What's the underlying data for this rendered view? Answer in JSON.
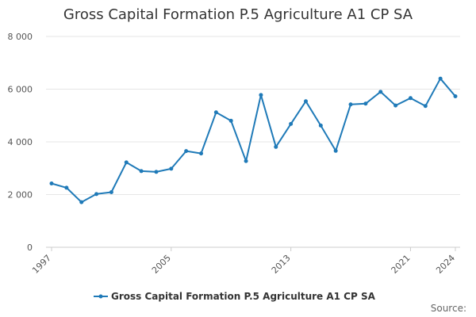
{
  "chart_data": {
    "type": "line",
    "title": "Gross Capital Formation P.5 Agriculture A1 CP SA",
    "xlabel": "",
    "ylabel": "",
    "x": [
      1997,
      1998,
      1999,
      2000,
      2001,
      2002,
      2003,
      2004,
      2005,
      2006,
      2007,
      2008,
      2009,
      2010,
      2011,
      2012,
      2013,
      2014,
      2015,
      2016,
      2017,
      2018,
      2019,
      2020,
      2021,
      2022,
      2023,
      2024
    ],
    "x_tick_labels": [
      "1997",
      "2005",
      "2013",
      "2021",
      "2024"
    ],
    "y_tick_labels": [
      "0",
      "2 000",
      "4 000",
      "6 000",
      "8 000"
    ],
    "y_ticks": [
      0,
      2000,
      4000,
      6000,
      8000
    ],
    "ylim": [
      0,
      8000
    ],
    "grid": true,
    "legend_position": "bottom-center",
    "series": [
      {
        "name": "Gross Capital Formation P.5 Agriculture A1 CP SA",
        "color": "#1f7ab8",
        "values": [
          2420,
          2260,
          1710,
          2020,
          2090,
          3220,
          2890,
          2860,
          2980,
          3650,
          3560,
          5120,
          4800,
          3270,
          5780,
          3810,
          4680,
          5540,
          4620,
          3660,
          5420,
          5450,
          5900,
          5380,
          5660,
          5360,
          6400,
          5730
        ]
      }
    ],
    "source_label": "Source:"
  }
}
